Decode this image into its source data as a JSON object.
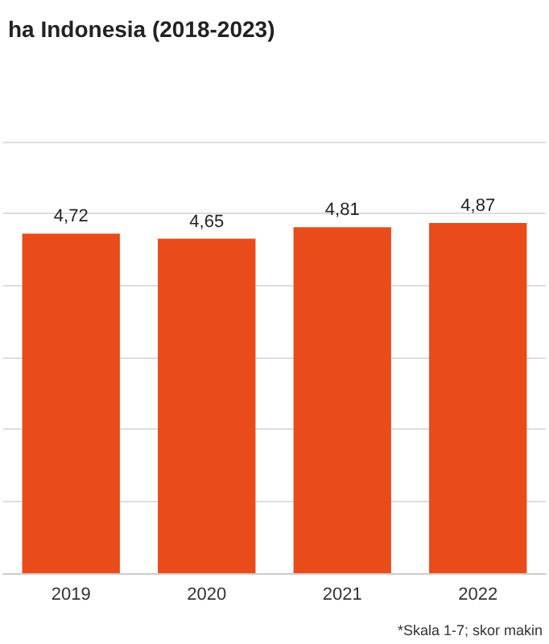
{
  "chart_data": {
    "type": "bar",
    "title": "ha Indonesia (2018-2023)",
    "categories": [
      "2019",
      "2020",
      "2021",
      "2022"
    ],
    "values": [
      4.72,
      4.65,
      4.81,
      4.87
    ],
    "color": "#e94b1b",
    "value_labels": [
      "4,72",
      "4,65",
      "4,81",
      "4,87"
    ],
    "ylim": [
      0,
      6
    ],
    "yticks": [
      {
        "value": 0,
        "label": null
      },
      {
        "value": 1,
        "label": null
      },
      {
        "value": 2,
        "label": null
      },
      {
        "value": 3,
        "label": null
      },
      {
        "value": 4,
        "label": null
      },
      {
        "value": 5,
        "label": null
      },
      {
        "value": 6,
        "label": null
      }
    ],
    "grid": "y",
    "tick_labels": "x",
    "annotations": [
      "*Skala 1-7; skor makin"
    ]
  }
}
